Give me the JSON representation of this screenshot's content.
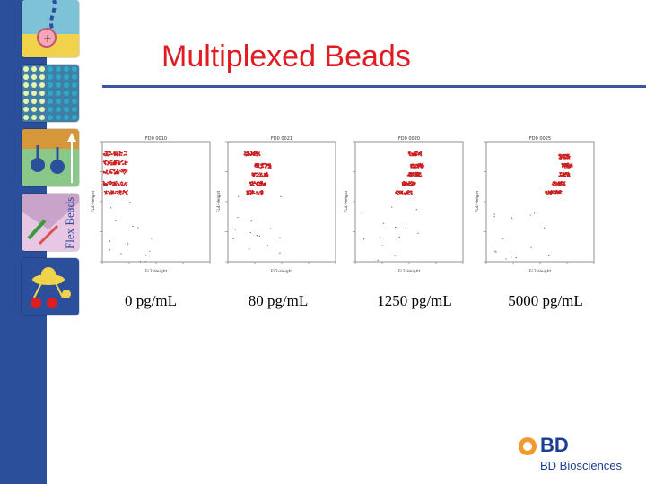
{
  "slide": {
    "title": "Multiplexed Beads",
    "side_text": "Flex Beads",
    "logo": {
      "mark": "BD",
      "subtitle": "BD Biosciences"
    }
  },
  "colors": {
    "title": "#e01b22",
    "bar": "#2b4f9a",
    "rule": "#3a57a3",
    "dots": "#cc1f1f",
    "logo": "#1c3f94"
  },
  "chart_data": [
    {
      "type": "scatter",
      "title": "FD0 0010",
      "xlabel": "FL2-Height",
      "ylabel": "FL4-Height",
      "xlim": [
        0,
        4
      ],
      "ylim": [
        0,
        4
      ],
      "caption": "0 pg/mL",
      "clusters": [
        {
          "x": 0.5,
          "y": 3.6,
          "spread": 0.9
        },
        {
          "x": 0.5,
          "y": 3.3,
          "spread": 0.9
        },
        {
          "x": 0.5,
          "y": 3.0,
          "spread": 0.9
        },
        {
          "x": 0.5,
          "y": 2.6,
          "spread": 0.9
        },
        {
          "x": 0.5,
          "y": 2.3,
          "spread": 0.9
        }
      ]
    },
    {
      "type": "scatter",
      "title": "FD0 0021",
      "xlabel": "FL2-Height",
      "ylabel": "FL4-Height",
      "xlim": [
        0,
        4
      ],
      "ylim": [
        0,
        4
      ],
      "caption": "80 pg/mL",
      "clusters": [
        {
          "x": 0.9,
          "y": 3.6,
          "spread": 0.6
        },
        {
          "x": 1.3,
          "y": 3.2,
          "spread": 0.6
        },
        {
          "x": 1.2,
          "y": 2.9,
          "spread": 0.6
        },
        {
          "x": 1.1,
          "y": 2.6,
          "spread": 0.6
        },
        {
          "x": 1.0,
          "y": 2.3,
          "spread": 0.6
        }
      ]
    },
    {
      "type": "scatter",
      "title": "FD0 0020",
      "xlabel": "FL2-Height",
      "ylabel": "FL4-Height",
      "xlim": [
        0,
        4
      ],
      "ylim": [
        0,
        4
      ],
      "caption": "1250 pg/mL",
      "clusters": [
        {
          "x": 2.2,
          "y": 3.6,
          "spread": 0.5
        },
        {
          "x": 2.3,
          "y": 3.2,
          "spread": 0.5
        },
        {
          "x": 2.2,
          "y": 2.9,
          "spread": 0.5
        },
        {
          "x": 2.0,
          "y": 2.6,
          "spread": 0.5
        },
        {
          "x": 1.8,
          "y": 2.3,
          "spread": 0.6
        }
      ]
    },
    {
      "type": "scatter",
      "title": "FD0 0025",
      "xlabel": "FL2-Height",
      "ylabel": "FL4-Height",
      "xlim": [
        0,
        4
      ],
      "ylim": [
        0,
        4
      ],
      "caption": "5000 pg/mL",
      "clusters": [
        {
          "x": 2.9,
          "y": 3.5,
          "spread": 0.4
        },
        {
          "x": 3.0,
          "y": 3.2,
          "spread": 0.4
        },
        {
          "x": 2.9,
          "y": 2.9,
          "spread": 0.4
        },
        {
          "x": 2.7,
          "y": 2.6,
          "spread": 0.5
        },
        {
          "x": 2.5,
          "y": 2.3,
          "spread": 0.6
        }
      ]
    }
  ]
}
